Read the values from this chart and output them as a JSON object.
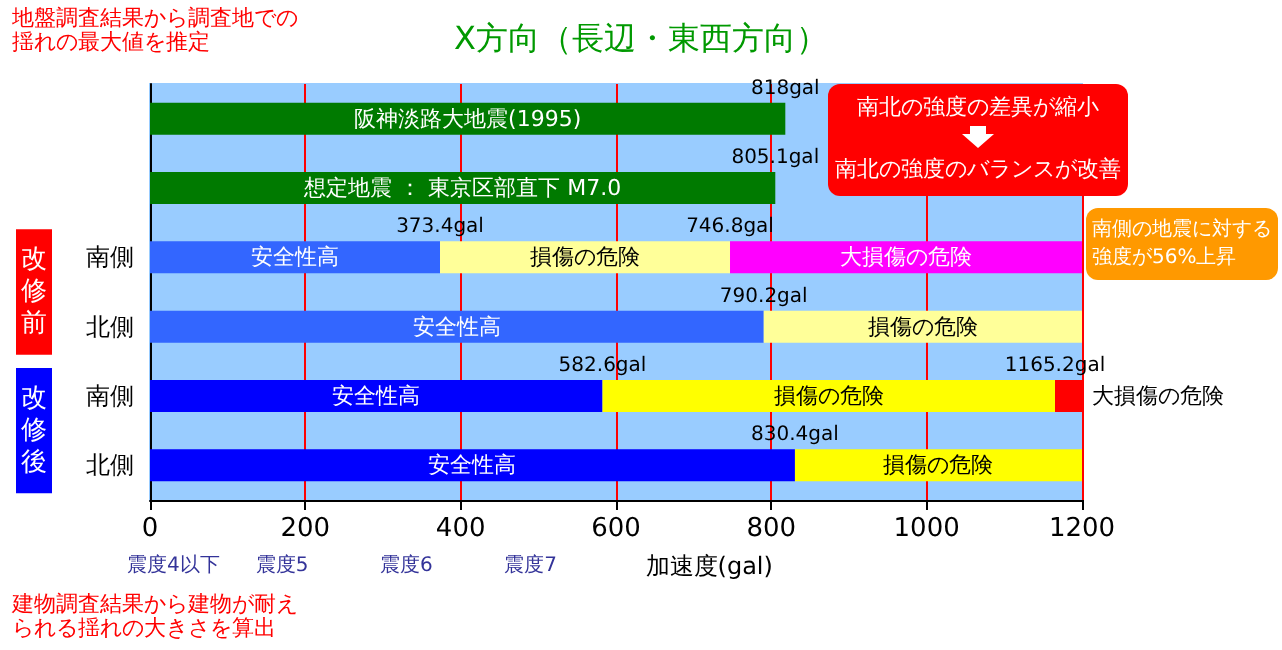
{
  "chart_data": {
    "type": "bar",
    "orientation": "horizontal",
    "stacked": true,
    "title": "X方向（長辺・東西方向）",
    "xlabel": "加速度(gal)",
    "categories": [
      null,
      null,
      "南側",
      "北側",
      "南側",
      "北側"
    ],
    "series": [
      {
        "colors": [
          "#007a00",
          "#007a00",
          "#3366ff",
          "#3366ff",
          "#0000ff",
          "#0000ff"
        ],
        "values": [
          818,
          805.1,
          373.4,
          790.2,
          582.6,
          830.4
        ],
        "value_labels": [
          "阪神淡路大地震(1995)",
          "想定地震 ： 東京区部直下 M7.0",
          "安全性高",
          "安全性高",
          "安全性高",
          "安全性高"
        ]
      },
      {
        "colors": [
          "#ffff99",
          "#ffff99",
          "#ffff99",
          "#ffff99",
          "#ffff00",
          "#ffff00"
        ],
        "values": [
          null,
          null,
          373.4,
          409.8,
          582.6,
          369.6
        ],
        "value_labels": [
          null,
          null,
          "損傷の危険",
          "損傷の危険",
          "損傷の危険",
          "損傷の危険"
        ]
      },
      {
        "colors": [
          "#ff00ff",
          "#ff00ff",
          "#ff00ff",
          "#ff00ff",
          "#ff0000",
          "#ff0000"
        ],
        "values": [
          null,
          null,
          453.2,
          null,
          34.8,
          null
        ],
        "value_labels": [
          null,
          null,
          "大損傷の危険",
          null,
          "大損傷の危険",
          null
        ]
      }
    ],
    "xlim": [
      0,
      1200
    ],
    "xticks": [
      0,
      200,
      400,
      600,
      800,
      1000,
      1200
    ],
    "grid": "x",
    "annotations": [
      "地盤調査結果から調査地での揺れの最大値を推定",
      "建物調査結果から建物が耐えられる揺れの大きさを算出",
      "南北の強度の差異が縮小",
      "南北の強度のバランスが改善",
      "南側の地震に対する強度が56%上昇",
      "改修前",
      "改修後",
      "震度4以下",
      "震度5",
      "震度6",
      "震度7",
      "818gal",
      "805.1gal",
      "373.4gal",
      "746.8gal",
      "790.2gal",
      "582.6gal",
      "1165.2gal",
      "830.4gal"
    ]
  }
}
